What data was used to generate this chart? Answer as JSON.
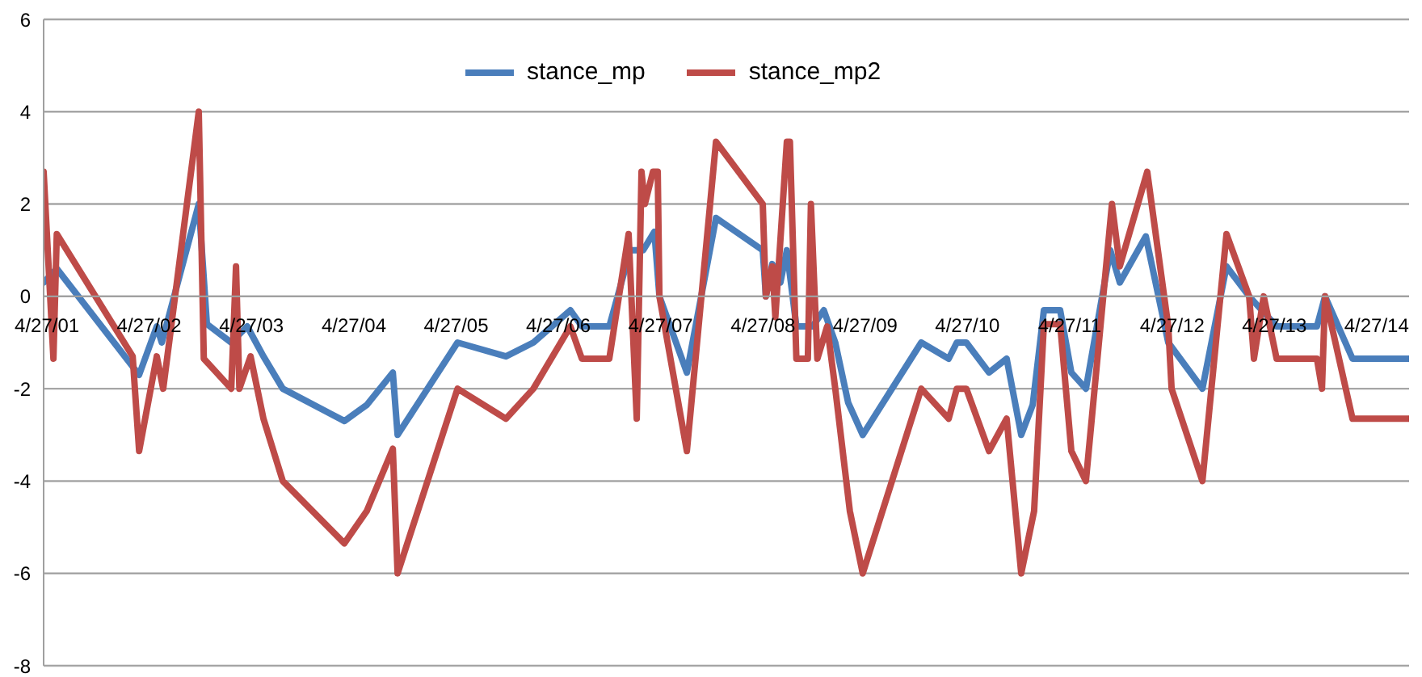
{
  "chart_data": {
    "type": "line",
    "xlim": [
      "2001-04-15",
      "2014-08-21"
    ],
    "ylim": [
      -8,
      6
    ],
    "yticks": [
      -8,
      -6,
      -4,
      -2,
      0,
      2,
      4,
      6
    ],
    "xticks": [
      {
        "value": "2001-04-27",
        "label": "4/27/01"
      },
      {
        "value": "2002-04-27",
        "label": "4/27/02"
      },
      {
        "value": "2003-04-27",
        "label": "4/27/03"
      },
      {
        "value": "2004-04-27",
        "label": "4/27/04"
      },
      {
        "value": "2005-04-27",
        "label": "4/27/05"
      },
      {
        "value": "2006-04-27",
        "label": "4/27/06"
      },
      {
        "value": "2007-04-27",
        "label": "4/27/07"
      },
      {
        "value": "2008-04-27",
        "label": "4/27/08"
      },
      {
        "value": "2009-04-27",
        "label": "4/27/09"
      },
      {
        "value": "2010-04-27",
        "label": "4/27/10"
      },
      {
        "value": "2011-04-27",
        "label": "4/27/11"
      },
      {
        "value": "2012-04-27",
        "label": "4/27/12"
      },
      {
        "value": "2013-04-27",
        "label": "4/27/13"
      },
      {
        "value": "2014-04-27",
        "label": "4/27/14"
      }
    ],
    "grid": "y",
    "legend": "top",
    "series": [
      {
        "name": "stance_mp",
        "color": "#4a7ebb",
        "x": [
          "2001-04-15",
          "2001-06-01",
          "2002-03-22",
          "2002-05-24",
          "2002-06-11",
          "2002-10-21",
          "2002-11-19",
          "2003-02-14",
          "2003-04-12",
          "2003-06-09",
          "2003-08-17",
          "2004-03-24",
          "2004-06-12",
          "2004-09-13",
          "2004-09-30",
          "2005-05-02",
          "2005-10-22",
          "2006-01-28",
          "2006-06-09",
          "2006-07-20",
          "2006-10-26",
          "2007-01-09",
          "2007-02-24",
          "2007-04-05",
          "2007-04-23",
          "2007-07-30",
          "2007-11-11",
          "2008-04-26",
          "2008-05-07",
          "2008-05-30",
          "2008-06-28",
          "2008-07-21",
          "2008-08-24",
          "2008-10-21",
          "2008-11-30",
          "2009-01-10",
          "2009-02-25",
          "2009-04-18",
          "2009-11-13",
          "2010-02-19",
          "2010-03-20",
          "2010-04-23",
          "2010-07-13",
          "2010-09-14",
          "2010-11-05",
          "2010-12-16",
          "2011-01-25",
          "2011-03-24",
          "2011-05-03",
          "2011-06-24",
          "2011-09-19",
          "2011-10-23",
          "2012-01-24",
          "2012-04-13",
          "2012-08-13",
          "2012-11-07",
          "2013-01-27",
          "2013-05-05",
          "2013-09-26",
          "2013-10-25",
          "2014-01-31",
          "2014-08-21"
        ],
        "values": [
          0.3,
          0.6,
          -1.7,
          -0.65,
          -1.0,
          2.0,
          -0.6,
          -1.0,
          -0.65,
          -1.3,
          -2.0,
          -2.7,
          -2.35,
          -1.65,
          -3.0,
          -1.0,
          -1.3,
          -1.0,
          -0.3,
          -0.65,
          -0.65,
          1.0,
          1.0,
          1.4,
          0.0,
          -1.65,
          1.7,
          1.0,
          0.0,
          0.7,
          0.3,
          1.0,
          -0.65,
          -0.65,
          -0.3,
          -1.0,
          -2.3,
          -3.0,
          -1.0,
          -1.35,
          -1.0,
          -1.0,
          -1.65,
          -1.35,
          -3.0,
          -2.35,
          -0.3,
          -0.3,
          -1.65,
          -2.0,
          1.0,
          0.3,
          1.3,
          -1.0,
          -2.0,
          0.65,
          0.0,
          -0.65,
          -0.65,
          0.0,
          -1.35,
          -1.35
        ]
      },
      {
        "name": "stance_mp2",
        "color": "#be4b48",
        "x": [
          "2001-04-15",
          "2001-05-20",
          "2001-06-01",
          "2002-02-27",
          "2002-03-22",
          "2002-05-24",
          "2002-06-16",
          "2002-10-21",
          "2002-11-08",
          "2003-02-14",
          "2003-03-03",
          "2003-03-15",
          "2003-04-24",
          "2003-06-09",
          "2003-08-17",
          "2004-03-24",
          "2004-06-12",
          "2004-09-13",
          "2004-09-30",
          "2005-05-02",
          "2005-10-22",
          "2006-01-28",
          "2006-06-09",
          "2006-07-20",
          "2006-10-26",
          "2007-01-03",
          "2007-02-01",
          "2007-02-18",
          "2007-03-02",
          "2007-03-31",
          "2007-04-17",
          "2007-04-23",
          "2007-07-30",
          "2007-11-11",
          "2008-04-26",
          "2008-05-07",
          "2008-05-30",
          "2008-06-10",
          "2008-07-21",
          "2008-08-01",
          "2008-08-24",
          "2008-10-04",
          "2008-10-15",
          "2008-11-07",
          "2008-12-12",
          "2009-01-10",
          "2009-03-03",
          "2009-04-18",
          "2009-11-13",
          "2010-02-19",
          "2010-03-20",
          "2010-04-23",
          "2010-07-13",
          "2010-09-14",
          "2010-11-05",
          "2010-12-21",
          "2011-01-25",
          "2011-03-24",
          "2011-05-03",
          "2011-06-24",
          "2011-09-25",
          "2011-10-23",
          "2012-01-29",
          "2012-04-13",
          "2012-04-25",
          "2012-08-13",
          "2012-11-07",
          "2013-01-27",
          "2013-02-13",
          "2013-03-20",
          "2013-05-05",
          "2013-09-26",
          "2013-10-14",
          "2013-10-25",
          "2014-01-31",
          "2014-08-21"
        ],
        "values": [
          2.7,
          -1.35,
          1.35,
          -1.3,
          -3.35,
          -1.3,
          -2.0,
          4.0,
          -1.35,
          -2.0,
          0.65,
          -2.0,
          -1.3,
          -2.65,
          -4.0,
          -5.35,
          -4.65,
          -3.3,
          -6.0,
          -2.0,
          -2.65,
          -2.0,
          -0.65,
          -1.35,
          -1.35,
          1.35,
          -2.65,
          2.7,
          2.0,
          2.7,
          2.7,
          0.0,
          -3.35,
          3.35,
          2.0,
          0.0,
          0.65,
          -0.45,
          3.35,
          3.35,
          -1.35,
          -1.35,
          2.0,
          -1.35,
          -0.65,
          -2.0,
          -4.65,
          -6.0,
          -2.0,
          -2.65,
          -2.0,
          -2.0,
          -3.35,
          -2.65,
          -6.0,
          -4.65,
          -0.6,
          -0.6,
          -3.35,
          -4.0,
          2.0,
          0.65,
          2.7,
          -0.65,
          -2.0,
          -4.0,
          1.35,
          0.0,
          -1.35,
          0.0,
          -1.35,
          -1.35,
          -2.0,
          0.0,
          -2.65,
          -2.65
        ]
      }
    ]
  }
}
